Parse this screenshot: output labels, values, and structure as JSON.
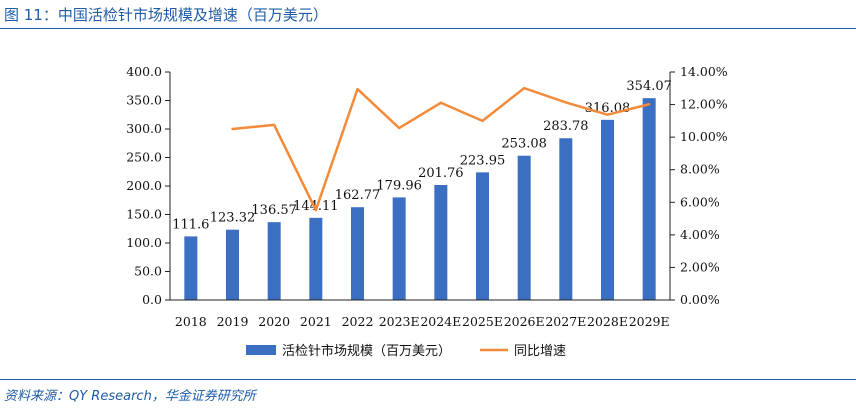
{
  "figure": {
    "title": "图 11：中国活检针市场规模及增速（百万美元）",
    "source": "资料来源：QY Research，华金证券研究所"
  },
  "colors": {
    "bar": "#3a6fc2",
    "line": "#f28a3a",
    "title": "#1f5ca8",
    "rule": "#2a5a9e"
  },
  "chart_data": {
    "type": "bar",
    "categories": [
      "2018",
      "2019",
      "2020",
      "2021",
      "2022",
      "2023E",
      "2024E",
      "2025E",
      "2026E",
      "2027E",
      "2028E",
      "2029E"
    ],
    "series": [
      {
        "name": "活检针市场规模（百万美元）",
        "type": "bar",
        "axis": "left",
        "values": [
          111.6,
          123.32,
          136.57,
          144.11,
          162.77,
          179.96,
          201.76,
          223.95,
          253.08,
          283.78,
          316.08,
          354.07
        ],
        "labels": [
          "111.6",
          "123.32",
          "136.57",
          "144.11",
          "162.77",
          "179.96",
          "201.76",
          "223.95",
          "253.08",
          "283.78",
          "316.08",
          "354.07"
        ]
      },
      {
        "name": "同比增速",
        "type": "line",
        "axis": "right",
        "values": [
          null,
          10.5,
          10.75,
          5.52,
          12.95,
          10.56,
          12.11,
          11.0,
          13.01,
          12.13,
          11.38,
          12.02
        ]
      }
    ],
    "y_left": {
      "ylim": [
        0,
        400
      ],
      "ticks": [
        "0.0",
        "50.0",
        "100.0",
        "150.0",
        "200.0",
        "250.0",
        "300.0",
        "350.0",
        "400.0"
      ]
    },
    "y_right": {
      "ylim": [
        0,
        14
      ],
      "ticks": [
        "0.00%",
        "2.00%",
        "4.00%",
        "6.00%",
        "8.00%",
        "10.00%",
        "12.00%",
        "14.00%"
      ]
    },
    "grid": false,
    "legend": "bottom"
  }
}
